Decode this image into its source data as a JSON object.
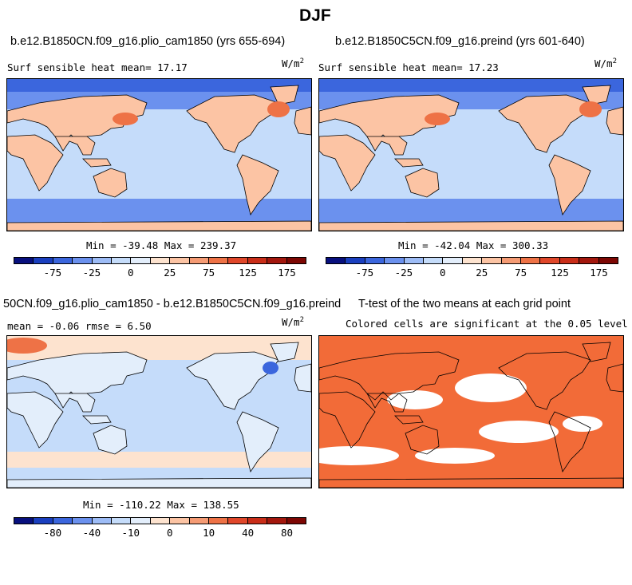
{
  "figure": {
    "title": "DJF"
  },
  "panels": [
    {
      "case_title": "b.e12.B1850CN.f09_g16.plio_cam1850 (yrs 655-694)",
      "left_text": "Surf sensible heat   mean=  17.17",
      "units": "W/m",
      "units_exp": "2",
      "stats": "Min = -39.48 Max = 239.37"
    },
    {
      "case_title": "b.e12.B1850C5CN.f09_g16.preind (yrs 601-640)",
      "left_text": "Surf sensible heat   mean=  17.23",
      "units": "W/m",
      "units_exp": "2",
      "stats": "Min = -42.04 Max = 300.33"
    },
    {
      "case_title": "50CN.f09_g16.plio_cam1850 - b.e12.B1850C5CN.f09_g16.preind",
      "left_text": "mean =  -0.06    rmse =   6.50",
      "units": "W/m",
      "units_exp": "2",
      "stats": "Min = -110.22 Max = 138.55"
    },
    {
      "case_title": "T-test of the two means at each grid point",
      "left_text": "Colored cells are significant at the 0.05 level"
    }
  ],
  "colorbars": {
    "field": {
      "labels": [
        "-75",
        "-25",
        "0",
        "25",
        "75",
        "125",
        "175"
      ]
    },
    "diff": {
      "labels": [
        "-80",
        "-40",
        "-10",
        "0",
        "10",
        "40",
        "80"
      ]
    },
    "colors": [
      "#08107e",
      "#1a3fbf",
      "#3b66dd",
      "#6b91ee",
      "#9dbcf6",
      "#c5dcfa",
      "#e3eefb",
      "#fde3cf",
      "#fcc4a4",
      "#f59b74",
      "#ee7246",
      "#e0472a",
      "#c92d18",
      "#a3170d",
      "#7d0703"
    ]
  },
  "map_colors": {
    "ocean": "#c5dcfa",
    "land_warm": "#fcc4a4",
    "land_hot": "#ee7246",
    "cold": "#6b91ee",
    "colder": "#3b66dd",
    "sig": "#f26b38",
    "coast": "#000000"
  }
}
